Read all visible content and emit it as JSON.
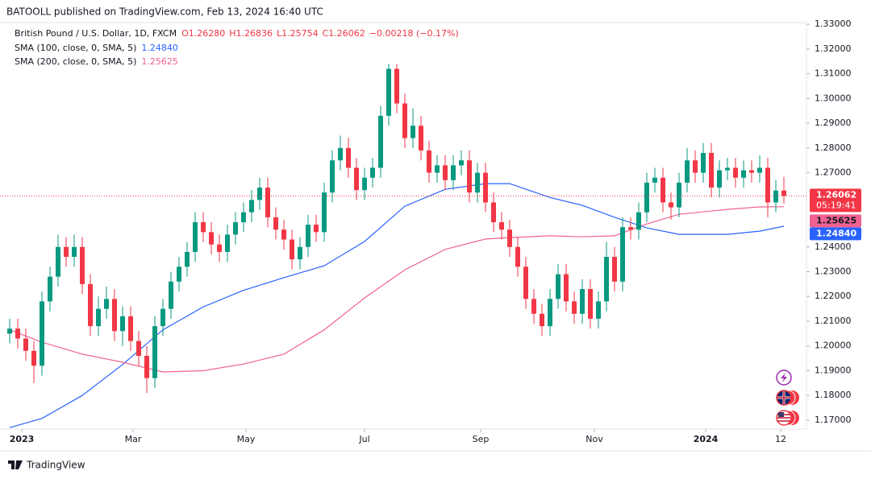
{
  "header": {
    "publisher": "BATOOLL published on TradingView.com, Feb 13, 2024 16:40 UTC",
    "brand": "TradingView"
  },
  "chart_data": {
    "type": "candlestick",
    "title": "British Pound / U.S. Dollar, 1D, FXCM",
    "ohlc_labels": [
      "O1.26280",
      "H1.26836",
      "L1.25754",
      "C1.26062"
    ],
    "change_label": "−0.00218 (−0.17%)",
    "last_price_label": "1.26062",
    "countdown": "05:19:41",
    "up_color": "#089981",
    "down_color": "#f23645",
    "open": [
      1.205,
      1.207,
      1.203,
      1.198,
      1.192,
      1.218,
      1.228,
      1.24,
      1.236,
      1.24,
      1.225,
      1.208,
      1.215,
      1.219,
      1.206,
      1.212,
      1.202,
      1.196,
      1.187,
      1.208,
      1.215,
      1.226,
      1.232,
      1.238,
      1.25,
      1.246,
      1.241,
      1.238,
      1.245,
      1.25,
      1.254,
      1.259,
      1.264,
      1.252,
      1.247,
      1.243,
      1.235,
      1.24,
      1.249,
      1.246,
      1.262,
      1.275,
      1.28,
      1.272,
      1.263,
      1.268,
      1.272,
      1.293,
      1.312,
      1.298,
      1.284,
      1.289,
      1.279,
      1.27,
      1.273,
      1.267,
      1.273,
      1.275,
      1.262,
      1.27,
      1.258,
      1.25,
      1.247,
      1.24,
      1.232,
      1.219,
      1.213,
      1.208,
      1.219,
      1.229,
      1.218,
      1.213,
      1.223,
      1.211,
      1.218,
      1.236,
      1.226,
      1.248,
      1.247,
      1.254,
      1.266,
      1.268,
      1.258,
      1.256,
      1.266,
      1.275,
      1.27,
      1.278,
      1.264,
      1.271,
      1.272,
      1.268,
      1.271,
      1.27,
      1.272,
      1.258,
      1.2628
    ],
    "high": [
      1.211,
      1.211,
      1.207,
      1.202,
      1.222,
      1.232,
      1.245,
      1.244,
      1.245,
      1.244,
      1.229,
      1.22,
      1.224,
      1.223,
      1.216,
      1.216,
      1.206,
      1.2,
      1.212,
      1.219,
      1.23,
      1.236,
      1.242,
      1.254,
      1.254,
      1.25,
      1.245,
      1.249,
      1.254,
      1.258,
      1.263,
      1.268,
      1.268,
      1.256,
      1.251,
      1.247,
      1.244,
      1.253,
      1.253,
      1.266,
      1.279,
      1.285,
      1.284,
      1.276,
      1.272,
      1.276,
      1.297,
      1.314,
      1.314,
      1.302,
      1.296,
      1.293,
      1.283,
      1.277,
      1.277,
      1.277,
      1.279,
      1.279,
      1.274,
      1.274,
      1.262,
      1.254,
      1.251,
      1.244,
      1.236,
      1.223,
      1.217,
      1.223,
      1.233,
      1.233,
      1.222,
      1.227,
      1.227,
      1.222,
      1.242,
      1.24,
      1.252,
      1.252,
      1.258,
      1.27,
      1.272,
      1.272,
      1.262,
      1.27,
      1.28,
      1.279,
      1.282,
      1.282,
      1.275,
      1.276,
      1.276,
      1.275,
      1.275,
      1.277,
      1.276,
      1.267,
      1.26836
    ],
    "low": [
      1.201,
      1.199,
      1.194,
      1.185,
      1.188,
      1.214,
      1.224,
      1.232,
      1.232,
      1.221,
      1.204,
      1.204,
      1.211,
      1.202,
      1.2,
      1.198,
      1.192,
      1.181,
      1.183,
      1.204,
      1.211,
      1.222,
      1.228,
      1.234,
      1.242,
      1.237,
      1.234,
      1.234,
      1.241,
      1.246,
      1.25,
      1.255,
      1.248,
      1.243,
      1.239,
      1.231,
      1.231,
      1.236,
      1.242,
      1.242,
      1.258,
      1.271,
      1.268,
      1.259,
      1.259,
      1.264,
      1.268,
      1.289,
      1.294,
      1.28,
      1.28,
      1.275,
      1.266,
      1.266,
      1.263,
      1.263,
      1.269,
      1.258,
      1.258,
      1.254,
      1.246,
      1.243,
      1.236,
      1.228,
      1.215,
      1.209,
      1.204,
      1.204,
      1.215,
      1.214,
      1.209,
      1.209,
      1.207,
      1.207,
      1.214,
      1.222,
      1.222,
      1.243,
      1.243,
      1.25,
      1.262,
      1.254,
      1.251,
      1.252,
      1.262,
      1.266,
      1.266,
      1.26,
      1.26,
      1.267,
      1.264,
      1.264,
      1.266,
      1.266,
      1.252,
      1.254,
      1.25754
    ],
    "close": [
      1.207,
      1.203,
      1.198,
      1.192,
      1.218,
      1.228,
      1.24,
      1.236,
      1.24,
      1.225,
      1.208,
      1.215,
      1.219,
      1.206,
      1.212,
      1.202,
      1.196,
      1.187,
      1.208,
      1.215,
      1.226,
      1.232,
      1.238,
      1.25,
      1.246,
      1.241,
      1.238,
      1.245,
      1.25,
      1.254,
      1.259,
      1.264,
      1.252,
      1.247,
      1.243,
      1.235,
      1.24,
      1.249,
      1.246,
      1.262,
      1.275,
      1.28,
      1.272,
      1.263,
      1.268,
      1.272,
      1.293,
      1.312,
      1.298,
      1.284,
      1.289,
      1.279,
      1.27,
      1.273,
      1.267,
      1.273,
      1.275,
      1.262,
      1.27,
      1.258,
      1.25,
      1.247,
      1.24,
      1.232,
      1.219,
      1.213,
      1.208,
      1.219,
      1.229,
      1.218,
      1.213,
      1.223,
      1.211,
      1.218,
      1.236,
      1.226,
      1.248,
      1.247,
      1.254,
      1.266,
      1.268,
      1.258,
      1.256,
      1.266,
      1.275,
      1.27,
      1.278,
      1.264,
      1.271,
      1.272,
      1.268,
      1.271,
      1.27,
      1.272,
      1.258,
      1.2628,
      1.26062
    ],
    "indicators": [
      {
        "name": "SMA (100, close, 0, SMA, 5)",
        "color": "#2962ff",
        "value_label": "1.24840",
        "x": [
          0,
          4,
          9,
          14,
          19,
          24,
          29,
          34,
          39,
          44,
          49,
          54,
          59,
          62,
          67,
          71,
          75,
          79,
          83,
          89,
          93,
          96
        ],
        "values": [
          1.167,
          1.1707,
          1.18,
          1.1925,
          1.2065,
          1.2158,
          1.2225,
          1.2276,
          1.2324,
          1.2422,
          1.2565,
          1.2633,
          1.2656,
          1.2656,
          1.26,
          1.2568,
          1.252,
          1.2477,
          1.2451,
          1.2451,
          1.2464,
          1.2484
        ]
      },
      {
        "name": "SMA (200, close, 0, SMA, 5)",
        "color": "#f06292",
        "value_label": "1.25625",
        "x": [
          0,
          4,
          9,
          14,
          19,
          24,
          29,
          34,
          39,
          44,
          49,
          54,
          59,
          62,
          67,
          71,
          75,
          79,
          83,
          89,
          93,
          96
        ],
        "values": [
          1.2065,
          1.2015,
          1.1967,
          1.1934,
          1.1895,
          1.19,
          1.1927,
          1.1967,
          1.2065,
          1.2194,
          1.2308,
          1.239,
          1.2432,
          1.2438,
          1.2445,
          1.2441,
          1.2445,
          1.2493,
          1.2532,
          1.2552,
          1.2562,
          1.25625
        ]
      }
    ],
    "xlim": [
      -1.2,
      98.8
    ],
    "xticks": [
      {
        "value": 1.5,
        "label": "2023"
      },
      {
        "value": 15.3,
        "label": "Mar"
      },
      {
        "value": 29.3,
        "label": "May"
      },
      {
        "value": 44,
        "label": "Jul"
      },
      {
        "value": 58.4,
        "label": "Sep"
      },
      {
        "value": 72.5,
        "label": "Nov"
      },
      {
        "value": 86.3,
        "label": "2024"
      },
      {
        "value": 95.6,
        "label": "12"
      }
    ],
    "ylim": [
      1.1664,
      1.3333
    ],
    "yticks": [
      {
        "value": 1.33,
        "label": "1.33000"
      },
      {
        "value": 1.32,
        "label": "1.32000"
      },
      {
        "value": 1.31,
        "label": "1.31000"
      },
      {
        "value": 1.3,
        "label": "1.30000"
      },
      {
        "value": 1.29,
        "label": "1.29000"
      },
      {
        "value": 1.28,
        "label": "1.28000"
      },
      {
        "value": 1.27,
        "label": "1.27000"
      },
      {
        "value": 1.24,
        "label": "1.24000"
      },
      {
        "value": 1.23,
        "label": "1.23000"
      },
      {
        "value": 1.22,
        "label": "1.22000"
      },
      {
        "value": 1.21,
        "label": "1.21000"
      },
      {
        "value": 1.2,
        "label": "1.20000"
      },
      {
        "value": 1.19,
        "label": "1.19000"
      },
      {
        "value": 1.18,
        "label": "1.18000"
      },
      {
        "value": 1.17,
        "label": "1.17000"
      }
    ]
  }
}
